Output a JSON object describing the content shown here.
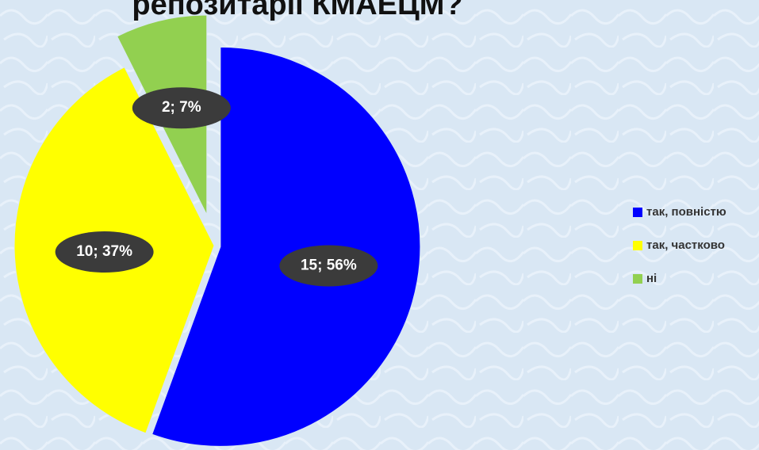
{
  "chart_data": {
    "type": "pie",
    "title": "репозитарії КМАЕЦМ?",
    "categories": [
      "так, повністю",
      "так, частково",
      "ні"
    ],
    "values": [
      15,
      10,
      2
    ],
    "value_labels": [
      "15; 56%",
      "10; 37%",
      "2; 7%"
    ],
    "colors": [
      "#0000ff",
      "#ffff00",
      "#92d050"
    ],
    "legend": "right"
  }
}
